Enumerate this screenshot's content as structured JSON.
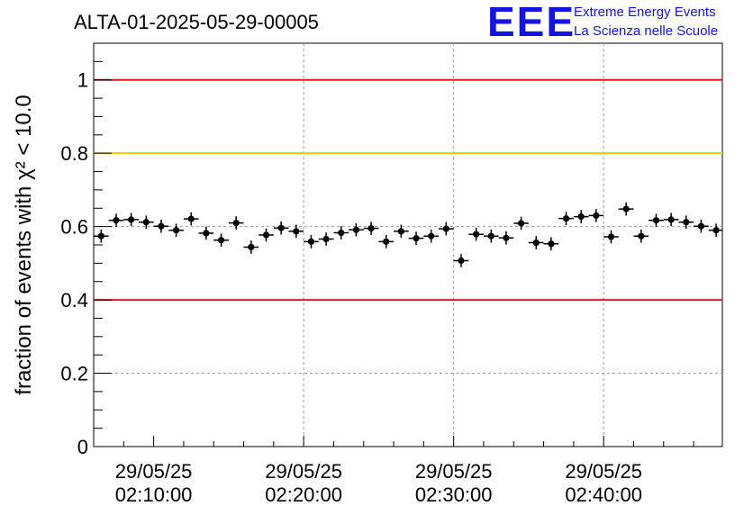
{
  "chart_data": {
    "type": "scatter",
    "title": "ALTA-01-2025-05-29-00005",
    "ylabel": "fraction of events with χ² < 10.0",
    "ylim": [
      0,
      1.1
    ],
    "y_ticks": [
      "0",
      "0.2",
      "0.4",
      "0.6",
      "0.8",
      "1"
    ],
    "x_ticks": [
      {
        "date": "29/05/25",
        "time": "02:10:00"
      },
      {
        "date": "29/05/25",
        "time": "02:20:00"
      },
      {
        "date": "29/05/25",
        "time": "02:30:00"
      },
      {
        "date": "29/05/25",
        "time": "02:40:00"
      }
    ],
    "xlim": [
      "02:06:00",
      "02:47:55"
    ],
    "grid": true,
    "reference_lines": [
      {
        "y": 1.0,
        "color": "#e8141e"
      },
      {
        "y": 0.8,
        "color": "#ffc800"
      },
      {
        "y": 0.4,
        "color": "#e8141e"
      }
    ],
    "series": [
      {
        "x": [
          "02:06:30",
          "02:07:30",
          "02:08:30",
          "02:09:30",
          "02:10:30",
          "02:11:30",
          "02:12:30",
          "02:13:30",
          "02:14:30",
          "02:15:30",
          "02:16:30",
          "02:17:30",
          "02:18:30",
          "02:19:30",
          "02:20:30",
          "02:21:30",
          "02:22:30",
          "02:23:30",
          "02:24:30",
          "02:25:30",
          "02:26:30",
          "02:27:30",
          "02:28:30",
          "02:29:30",
          "02:30:30",
          "02:31:30",
          "02:32:30",
          "02:33:30",
          "02:34:30",
          "02:35:30",
          "02:36:30",
          "02:37:30",
          "02:38:30",
          "02:39:30",
          "02:40:30",
          "02:41:30",
          "02:42:30",
          "02:43:30",
          "02:44:30",
          "02:45:30",
          "02:46:30",
          "02:47:30"
        ],
        "y": [
          0.574,
          0.617,
          0.619,
          0.612,
          0.601,
          0.59,
          0.621,
          0.582,
          0.563,
          0.61,
          0.544,
          0.577,
          0.596,
          0.587,
          0.559,
          0.566,
          0.583,
          0.591,
          0.595,
          0.559,
          0.587,
          0.568,
          0.574,
          0.594,
          0.507,
          0.579,
          0.574,
          0.569,
          0.609,
          0.556,
          0.553,
          0.622,
          0.627,
          0.63,
          0.572,
          0.648,
          0.574,
          0.617,
          0.619,
          0.612,
          0.601,
          0.59
        ],
        "y_err": 0.018,
        "color": "#000000"
      }
    ],
    "logo": {
      "letters": "EEE",
      "line1": "Extreme Energy Events",
      "line2": "La Scienza nelle Scuole",
      "color": "#1414e6"
    }
  }
}
